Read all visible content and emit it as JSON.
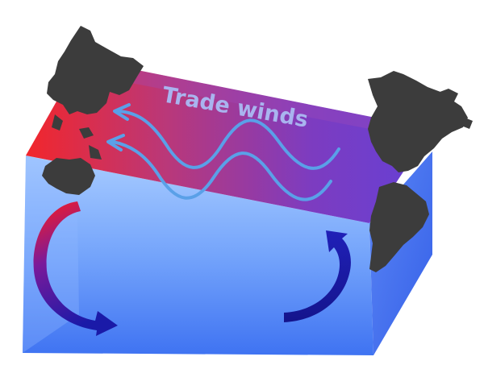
{
  "diagram": {
    "title": "Trade winds",
    "colors": {
      "surface_warm": "#e8303a",
      "surface_cool": "#6c3fd0",
      "ocean_light": "#9cc4ff",
      "ocean_deep": "#3a6df0",
      "wind_arrows": "#5aa0e8",
      "continents": "#3c3c3c",
      "circulation_warm": "#e62020",
      "circulation_cool": "#1a18a0"
    },
    "icons": {
      "wind": "wavy-arrow",
      "circulation": "curved-arrow",
      "land": "continent-silhouette"
    }
  }
}
